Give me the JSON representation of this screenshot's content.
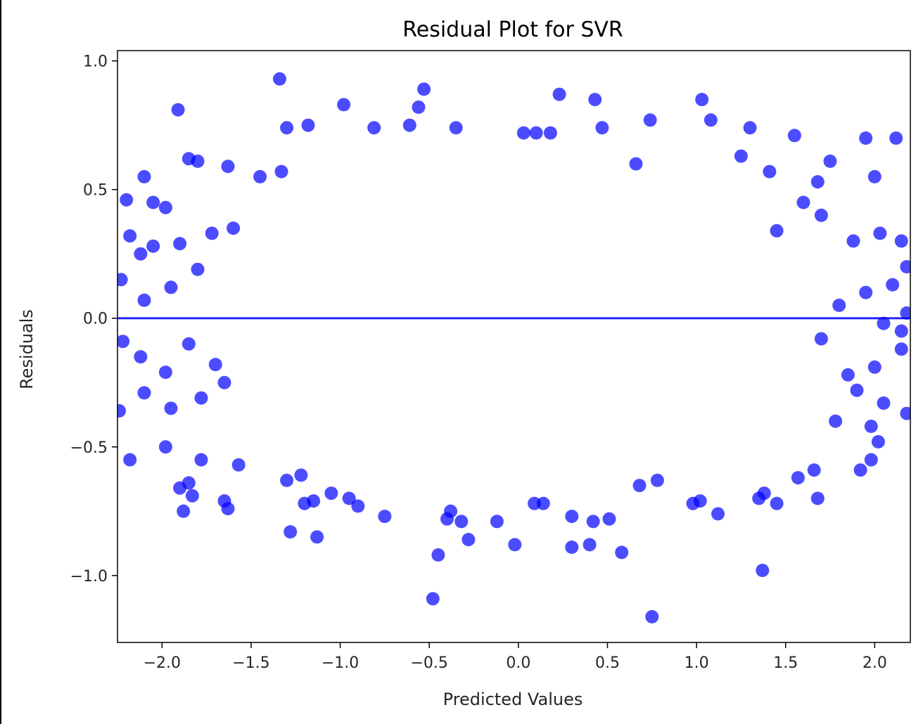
{
  "chart_data": {
    "type": "scatter",
    "title": "Residual Plot for SVR",
    "xlabel": "Predicted Values",
    "ylabel": "Residuals",
    "xlim": [
      -2.25,
      2.2
    ],
    "ylim": [
      -1.26,
      1.04
    ],
    "xticks": [
      -2.0,
      -1.5,
      -1.0,
      -0.5,
      0.0,
      0.5,
      1.0,
      1.5,
      2.0
    ],
    "xtick_labels": [
      "−2.0",
      "−1.5",
      "−1.0",
      "−0.5",
      "0.0",
      "0.5",
      "1.0",
      "1.5",
      "2.0"
    ],
    "yticks": [
      1.0,
      0.5,
      0.0,
      -0.5,
      -1.0
    ],
    "ytick_labels": [
      "1.0",
      "0.5",
      "0.0",
      "−0.5",
      "−1.0"
    ],
    "reference_line_y": 0.0,
    "grid": false,
    "point_color": "#0000ff",
    "point_alpha": 0.7,
    "series": [
      {
        "points": [
          [
            -1.34,
            0.93
          ],
          [
            -0.53,
            0.89
          ],
          [
            0.23,
            0.87
          ],
          [
            -1.91,
            0.81
          ],
          [
            -0.98,
            0.83
          ],
          [
            0.43,
            0.85
          ],
          [
            1.03,
            0.85
          ],
          [
            0.74,
            0.77
          ],
          [
            -0.56,
            0.82
          ],
          [
            -1.3,
            0.74
          ],
          [
            -1.18,
            0.75
          ],
          [
            -0.35,
            0.74
          ],
          [
            1.3,
            0.74
          ],
          [
            1.95,
            0.7
          ],
          [
            2.12,
            0.7
          ],
          [
            1.55,
            0.71
          ],
          [
            -1.85,
            0.62
          ],
          [
            -1.8,
            0.61
          ],
          [
            -1.63,
            0.59
          ],
          [
            -2.1,
            0.55
          ],
          [
            1.08,
            0.77
          ],
          [
            0.47,
            0.74
          ],
          [
            0.1,
            0.72
          ],
          [
            0.03,
            0.72
          ],
          [
            0.18,
            0.72
          ],
          [
            -0.61,
            0.75
          ],
          [
            -0.81,
            0.74
          ],
          [
            -2.2,
            0.46
          ],
          [
            -2.05,
            0.45
          ],
          [
            -1.98,
            0.43
          ],
          [
            -1.45,
            0.55
          ],
          [
            -1.33,
            0.57
          ],
          [
            2.0,
            0.55
          ],
          [
            1.68,
            0.53
          ],
          [
            1.75,
            0.61
          ],
          [
            1.41,
            0.57
          ],
          [
            1.25,
            0.63
          ],
          [
            0.66,
            0.6
          ],
          [
            -2.18,
            0.32
          ],
          [
            -2.05,
            0.28
          ],
          [
            -1.9,
            0.29
          ],
          [
            -1.72,
            0.33
          ],
          [
            -1.6,
            0.35
          ],
          [
            -2.12,
            0.25
          ],
          [
            1.88,
            0.3
          ],
          [
            2.03,
            0.33
          ],
          [
            2.15,
            0.3
          ],
          [
            1.7,
            0.4
          ],
          [
            1.6,
            0.45
          ],
          [
            1.45,
            0.34
          ],
          [
            -2.23,
            0.15
          ],
          [
            -2.1,
            0.07
          ],
          [
            -1.95,
            0.12
          ],
          [
            -1.8,
            0.19
          ],
          [
            2.18,
            0.2
          ],
          [
            2.1,
            0.13
          ],
          [
            1.95,
            0.1
          ],
          [
            1.8,
            0.05
          ],
          [
            2.05,
            -0.02
          ],
          [
            2.18,
            0.02
          ],
          [
            -2.22,
            -0.09
          ],
          [
            -2.12,
            -0.15
          ],
          [
            -1.98,
            -0.21
          ],
          [
            -1.85,
            -0.1
          ],
          [
            -1.7,
            -0.18
          ],
          [
            2.15,
            -0.12
          ],
          [
            2.0,
            -0.19
          ],
          [
            1.85,
            -0.22
          ],
          [
            1.7,
            -0.08
          ],
          [
            2.15,
            -0.05
          ],
          [
            -2.24,
            -0.36
          ],
          [
            -2.1,
            -0.29
          ],
          [
            -1.95,
            -0.35
          ],
          [
            -1.78,
            -0.31
          ],
          [
            -1.65,
            -0.25
          ],
          [
            2.18,
            -0.37
          ],
          [
            2.05,
            -0.33
          ],
          [
            1.9,
            -0.28
          ],
          [
            1.78,
            -0.4
          ],
          [
            1.98,
            -0.42
          ],
          [
            -2.18,
            -0.55
          ],
          [
            -1.98,
            -0.5
          ],
          [
            -1.9,
            -0.66
          ],
          [
            -1.85,
            -0.64
          ],
          [
            -1.83,
            -0.69
          ],
          [
            -1.88,
            -0.75
          ],
          [
            -1.78,
            -0.55
          ],
          [
            -1.65,
            -0.71
          ],
          [
            -1.63,
            -0.74
          ],
          [
            -1.57,
            -0.57
          ],
          [
            -1.3,
            -0.63
          ],
          [
            -1.22,
            -0.61
          ],
          [
            -1.2,
            -0.72
          ],
          [
            -1.15,
            -0.71
          ],
          [
            -1.13,
            -0.85
          ],
          [
            -1.28,
            -0.83
          ],
          [
            -1.05,
            -0.68
          ],
          [
            -0.95,
            -0.7
          ],
          [
            -0.9,
            -0.73
          ],
          [
            -0.75,
            -0.77
          ],
          [
            -0.45,
            -0.92
          ],
          [
            -0.4,
            -0.78
          ],
          [
            -0.38,
            -0.75
          ],
          [
            -0.32,
            -0.79
          ],
          [
            -0.28,
            -0.86
          ],
          [
            -0.12,
            -0.79
          ],
          [
            -0.02,
            -0.88
          ],
          [
            -0.48,
            -1.09
          ],
          [
            0.3,
            -0.89
          ],
          [
            0.4,
            -0.88
          ],
          [
            0.42,
            -0.79
          ],
          [
            0.51,
            -0.78
          ],
          [
            0.58,
            -0.91
          ],
          [
            0.3,
            -0.77
          ],
          [
            0.14,
            -0.72
          ],
          [
            0.09,
            -0.72
          ],
          [
            0.68,
            -0.65
          ],
          [
            0.78,
            -0.63
          ],
          [
            0.75,
            -1.16
          ],
          [
            1.02,
            -0.71
          ],
          [
            0.98,
            -0.72
          ],
          [
            1.12,
            -0.76
          ],
          [
            1.35,
            -0.7
          ],
          [
            1.38,
            -0.68
          ],
          [
            1.45,
            -0.72
          ],
          [
            1.37,
            -0.98
          ],
          [
            1.68,
            -0.7
          ],
          [
            1.66,
            -0.59
          ],
          [
            1.57,
            -0.62
          ],
          [
            1.92,
            -0.59
          ],
          [
            1.98,
            -0.55
          ],
          [
            2.02,
            -0.48
          ]
        ]
      }
    ]
  }
}
